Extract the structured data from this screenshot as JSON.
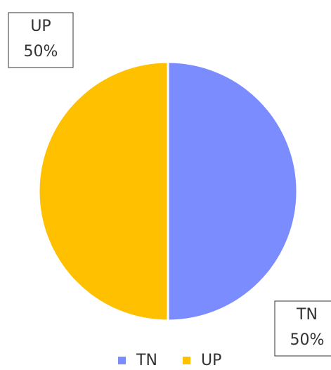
{
  "chart_data": {
    "type": "pie",
    "categories": [
      "TN",
      "UP"
    ],
    "values": [
      50,
      50
    ],
    "value_labels": [
      "50%",
      "50%"
    ],
    "colors": [
      "#7b8cff",
      "#ffc000"
    ],
    "legend": "bottom"
  }
}
